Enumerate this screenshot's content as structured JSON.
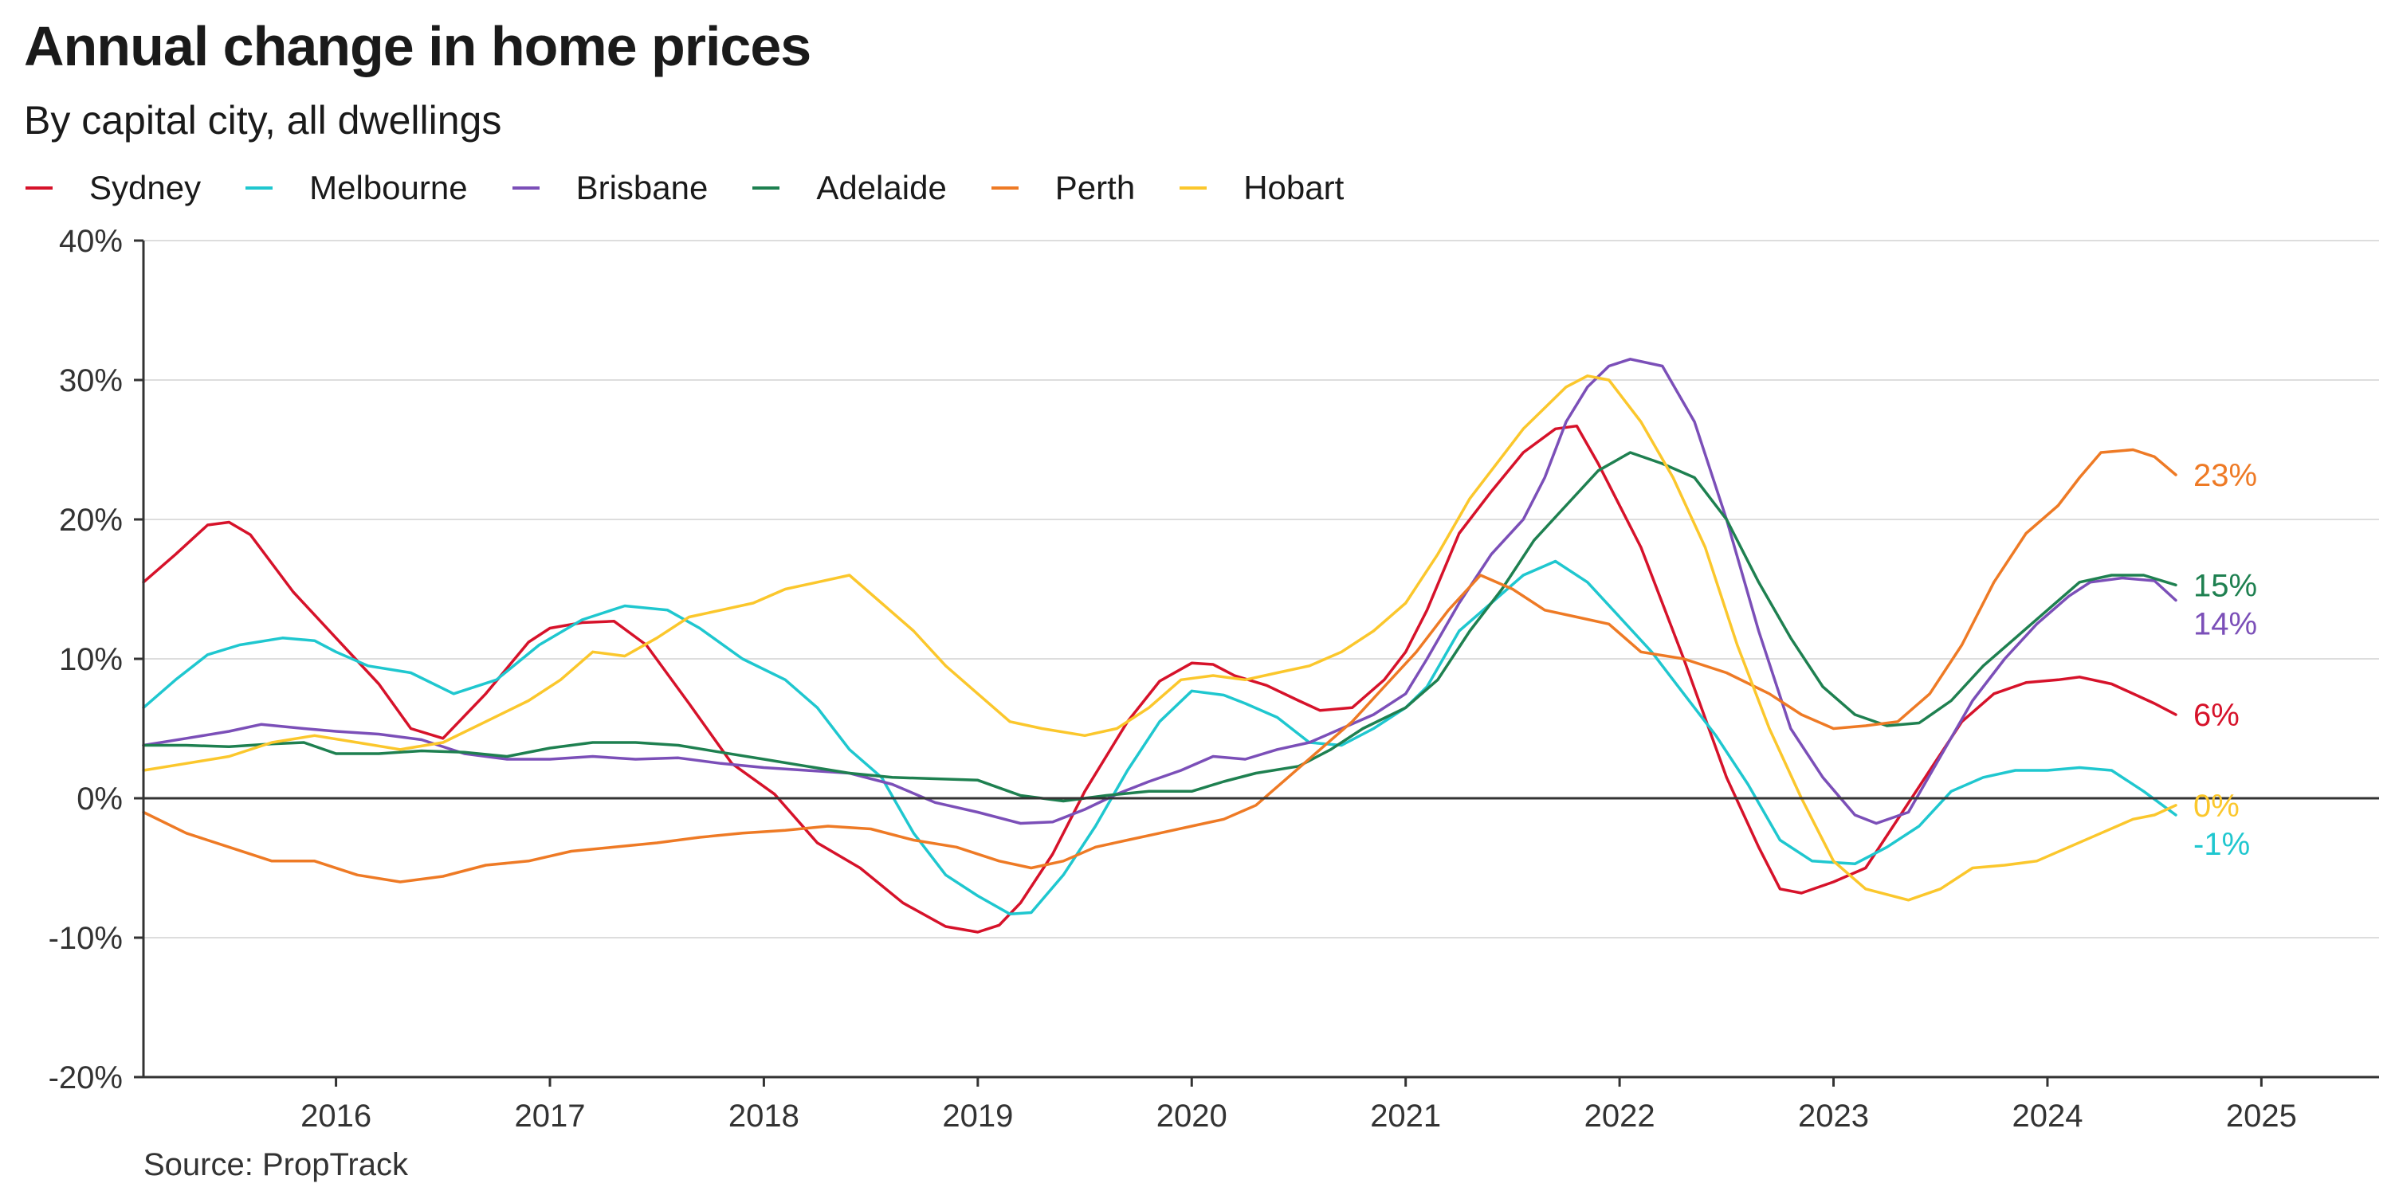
{
  "header": {
    "title": "Annual change in home prices",
    "subtitle": "By capital city, all dwellings"
  },
  "footer": {
    "source": "Source: PropTrack"
  },
  "chart_data": {
    "type": "line",
    "title": "Annual change in home prices",
    "subtitle": "By capital city, all dwellings",
    "xlabel": "",
    "ylabel": "",
    "xlim": [
      2015.1,
      2025.55
    ],
    "ylim": [
      -20,
      40
    ],
    "x_ticks": [
      2016,
      2017,
      2018,
      2019,
      2020,
      2021,
      2022,
      2023,
      2024,
      2025
    ],
    "y_ticks": [
      -20,
      -10,
      0,
      10,
      20,
      30,
      40
    ],
    "y_tick_labels": [
      "-20%",
      "-10%",
      "0%",
      "10%",
      "20%",
      "30%",
      "40%"
    ],
    "grid": true,
    "legend": "top-left",
    "series": [
      {
        "name": "Sydney",
        "color": "#d6122a",
        "end_label": "6%",
        "x": [
          2015.1,
          2015.25,
          2015.4,
          2015.5,
          2015.6,
          2015.8,
          2016.0,
          2016.2,
          2016.35,
          2016.5,
          2016.7,
          2016.9,
          2017.0,
          2017.15,
          2017.3,
          2017.45,
          2017.65,
          2017.85,
          2018.05,
          2018.25,
          2018.45,
          2018.65,
          2018.85,
          2019.0,
          2019.1,
          2019.2,
          2019.35,
          2019.5,
          2019.7,
          2019.85,
          2020.0,
          2020.1,
          2020.2,
          2020.35,
          2020.5,
          2020.6,
          2020.75,
          2020.9,
          2021.0,
          2021.1,
          2021.25,
          2021.4,
          2021.55,
          2021.7,
          2021.8,
          2021.9,
          2022.1,
          2022.3,
          2022.5,
          2022.65,
          2022.75,
          2022.85,
          2023.0,
          2023.15,
          2023.3,
          2023.45,
          2023.6,
          2023.75,
          2023.9,
          2024.05,
          2024.15,
          2024.3,
          2024.5,
          2024.6
        ],
        "values": [
          15.5,
          17.5,
          19.6,
          19.8,
          18.9,
          14.8,
          11.5,
          8.2,
          5.0,
          4.3,
          7.5,
          11.2,
          12.2,
          12.6,
          12.7,
          11.0,
          6.8,
          2.5,
          0.3,
          -3.2,
          -5.0,
          -7.5,
          -9.2,
          -9.6,
          -9.1,
          -7.5,
          -4.0,
          0.5,
          5.5,
          8.4,
          9.7,
          9.6,
          8.8,
          8.1,
          7.0,
          6.3,
          6.5,
          8.5,
          10.5,
          13.5,
          19.0,
          22.0,
          24.8,
          26.5,
          26.7,
          24.0,
          18.0,
          10.0,
          1.5,
          -3.5,
          -6.5,
          -6.8,
          -6.0,
          -5.0,
          -1.5,
          2.0,
          5.5,
          7.5,
          8.3,
          8.5,
          8.7,
          8.2,
          6.8,
          6.0
        ]
      },
      {
        "name": "Melbourne",
        "color": "#1fc7cf",
        "end_label": "-1%",
        "x": [
          2015.1,
          2015.25,
          2015.4,
          2015.55,
          2015.75,
          2015.9,
          2016.0,
          2016.15,
          2016.35,
          2016.55,
          2016.75,
          2016.95,
          2017.15,
          2017.35,
          2017.55,
          2017.7,
          2017.9,
          2018.1,
          2018.25,
          2018.4,
          2018.55,
          2018.7,
          2018.85,
          2019.0,
          2019.15,
          2019.25,
          2019.4,
          2019.55,
          2019.7,
          2019.85,
          2020.0,
          2020.15,
          2020.25,
          2020.4,
          2020.55,
          2020.7,
          2020.85,
          2021.0,
          2021.1,
          2021.25,
          2021.4,
          2021.55,
          2021.7,
          2021.85,
          2022.0,
          2022.15,
          2022.3,
          2022.45,
          2022.6,
          2022.75,
          2022.9,
          2023.1,
          2023.25,
          2023.4,
          2023.55,
          2023.7,
          2023.85,
          2024.0,
          2024.15,
          2024.3,
          2024.45,
          2024.6
        ],
        "values": [
          6.5,
          8.5,
          10.3,
          11.0,
          11.5,
          11.3,
          10.5,
          9.5,
          9.0,
          7.5,
          8.5,
          11.0,
          12.8,
          13.8,
          13.5,
          12.2,
          10.0,
          8.5,
          6.5,
          3.5,
          1.5,
          -2.5,
          -5.5,
          -7.0,
          -8.3,
          -8.2,
          -5.5,
          -2.0,
          2.0,
          5.5,
          7.7,
          7.4,
          6.8,
          5.8,
          4.0,
          3.8,
          5.0,
          6.5,
          8.0,
          12.0,
          14.0,
          16.0,
          17.0,
          15.5,
          13.0,
          10.5,
          7.5,
          4.5,
          1.0,
          -3.0,
          -4.5,
          -4.7,
          -3.5,
          -2.0,
          0.5,
          1.5,
          2.0,
          2.0,
          2.2,
          2.0,
          0.5,
          -1.2
        ]
      },
      {
        "name": "Brisbane",
        "color": "#7b4fb8",
        "end_label": "14%",
        "x": [
          2015.1,
          2015.3,
          2015.5,
          2015.65,
          2015.85,
          2016.0,
          2016.2,
          2016.4,
          2016.6,
          2016.8,
          2017.0,
          2017.2,
          2017.4,
          2017.6,
          2017.8,
          2018.0,
          2018.2,
          2018.4,
          2018.6,
          2018.8,
          2019.0,
          2019.2,
          2019.35,
          2019.5,
          2019.65,
          2019.8,
          2019.95,
          2020.1,
          2020.25,
          2020.4,
          2020.55,
          2020.7,
          2020.85,
          2021.0,
          2021.1,
          2021.25,
          2021.4,
          2021.55,
          2021.65,
          2021.75,
          2021.85,
          2021.95,
          2022.05,
          2022.2,
          2022.35,
          2022.5,
          2022.65,
          2022.8,
          2022.95,
          2023.1,
          2023.2,
          2023.35,
          2023.5,
          2023.65,
          2023.8,
          2023.95,
          2024.1,
          2024.2,
          2024.35,
          2024.5,
          2024.6
        ],
        "values": [
          3.8,
          4.3,
          4.8,
          5.3,
          5.0,
          4.8,
          4.6,
          4.2,
          3.2,
          2.8,
          2.8,
          3.0,
          2.8,
          2.9,
          2.5,
          2.2,
          2.0,
          1.8,
          1.0,
          -0.3,
          -1.0,
          -1.8,
          -1.7,
          -0.8,
          0.3,
          1.2,
          2.0,
          3.0,
          2.8,
          3.5,
          4.0,
          5.0,
          6.0,
          7.5,
          10.0,
          14.0,
          17.5,
          20.0,
          23.0,
          27.0,
          29.5,
          31.0,
          31.5,
          31.0,
          27.0,
          20.0,
          12.0,
          5.0,
          1.5,
          -1.2,
          -1.8,
          -1.0,
          3.0,
          7.0,
          10.0,
          12.5,
          14.5,
          15.5,
          15.8,
          15.6,
          14.2
        ]
      },
      {
        "name": "Adelaide",
        "color": "#1e8050",
        "end_label": "15%",
        "x": [
          2015.1,
          2015.3,
          2015.5,
          2015.7,
          2015.85,
          2016.0,
          2016.2,
          2016.4,
          2016.6,
          2016.8,
          2017.0,
          2017.2,
          2017.4,
          2017.6,
          2017.8,
          2018.0,
          2018.2,
          2018.4,
          2018.6,
          2018.8,
          2019.0,
          2019.2,
          2019.4,
          2019.6,
          2019.8,
          2020.0,
          2020.15,
          2020.3,
          2020.5,
          2020.65,
          2020.8,
          2021.0,
          2021.15,
          2021.3,
          2021.45,
          2021.6,
          2021.75,
          2021.9,
          2022.05,
          2022.2,
          2022.35,
          2022.5,
          2022.65,
          2022.8,
          2022.95,
          2023.1,
          2023.25,
          2023.4,
          2023.55,
          2023.7,
          2023.85,
          2024.0,
          2024.15,
          2024.3,
          2024.45,
          2024.6
        ],
        "values": [
          3.8,
          3.8,
          3.7,
          3.9,
          4.0,
          3.2,
          3.2,
          3.4,
          3.3,
          3.0,
          3.6,
          4.0,
          4.0,
          3.8,
          3.3,
          2.8,
          2.3,
          1.8,
          1.5,
          1.4,
          1.3,
          0.2,
          -0.2,
          0.2,
          0.5,
          0.5,
          1.2,
          1.8,
          2.3,
          3.5,
          5.0,
          6.5,
          8.5,
          12.0,
          15.0,
          18.5,
          21.0,
          23.5,
          24.8,
          24.0,
          23.0,
          20.0,
          15.5,
          11.5,
          8.0,
          6.0,
          5.2,
          5.4,
          7.0,
          9.5,
          11.5,
          13.5,
          15.5,
          16.0,
          16.0,
          15.3
        ]
      },
      {
        "name": "Perth",
        "color": "#ee7a25",
        "end_label": "23%",
        "x": [
          2015.1,
          2015.3,
          2015.5,
          2015.7,
          2015.9,
          2016.1,
          2016.3,
          2016.5,
          2016.7,
          2016.9,
          2017.1,
          2017.3,
          2017.5,
          2017.7,
          2017.9,
          2018.1,
          2018.3,
          2018.5,
          2018.7,
          2018.9,
          2019.1,
          2019.25,
          2019.4,
          2019.55,
          2019.7,
          2019.85,
          2020.0,
          2020.15,
          2020.3,
          2020.45,
          2020.6,
          2020.75,
          2020.9,
          2021.05,
          2021.2,
          2021.35,
          2021.5,
          2021.65,
          2021.8,
          2021.95,
          2022.1,
          2022.3,
          2022.5,
          2022.7,
          2022.85,
          2023.0,
          2023.15,
          2023.3,
          2023.45,
          2023.6,
          2023.75,
          2023.9,
          2024.05,
          2024.15,
          2024.25,
          2024.4,
          2024.5,
          2024.6
        ],
        "values": [
          -1.0,
          -2.5,
          -3.5,
          -4.5,
          -4.5,
          -5.5,
          -6.0,
          -5.6,
          -4.8,
          -4.5,
          -3.8,
          -3.5,
          -3.2,
          -2.8,
          -2.5,
          -2.3,
          -2.0,
          -2.2,
          -3.0,
          -3.5,
          -4.5,
          -5.0,
          -4.5,
          -3.5,
          -3.0,
          -2.5,
          -2.0,
          -1.5,
          -0.5,
          1.5,
          3.5,
          5.5,
          8.0,
          10.5,
          13.5,
          16.0,
          15.0,
          13.5,
          13.0,
          12.5,
          10.5,
          10.0,
          9.0,
          7.5,
          6.0,
          5.0,
          5.2,
          5.5,
          7.5,
          11.0,
          15.5,
          19.0,
          21.0,
          23.0,
          24.8,
          25.0,
          24.5,
          23.2
        ]
      },
      {
        "name": "Hobart",
        "color": "#fbc72c",
        "end_label": "0%",
        "x": [
          2015.1,
          2015.3,
          2015.5,
          2015.7,
          2015.9,
          2016.1,
          2016.3,
          2016.5,
          2016.7,
          2016.9,
          2017.05,
          2017.2,
          2017.35,
          2017.5,
          2017.65,
          2017.8,
          2017.95,
          2018.1,
          2018.25,
          2018.4,
          2018.55,
          2018.7,
          2018.85,
          2019.0,
          2019.15,
          2019.3,
          2019.5,
          2019.65,
          2019.8,
          2019.95,
          2020.1,
          2020.25,
          2020.4,
          2020.55,
          2020.7,
          2020.85,
          2021.0,
          2021.15,
          2021.3,
          2021.45,
          2021.55,
          2021.65,
          2021.75,
          2021.85,
          2021.95,
          2022.1,
          2022.25,
          2022.4,
          2022.55,
          2022.7,
          2022.85,
          2023.0,
          2023.15,
          2023.35,
          2023.5,
          2023.65,
          2023.8,
          2023.95,
          2024.1,
          2024.25,
          2024.4,
          2024.5,
          2024.6
        ],
        "values": [
          2.0,
          2.5,
          3.0,
          4.0,
          4.5,
          4.0,
          3.5,
          4.0,
          5.5,
          7.0,
          8.5,
          10.5,
          10.2,
          11.5,
          13.0,
          13.5,
          14.0,
          15.0,
          15.5,
          16.0,
          14.0,
          12.0,
          9.5,
          7.5,
          5.5,
          5.0,
          4.5,
          5.0,
          6.5,
          8.5,
          8.8,
          8.5,
          9.0,
          9.5,
          10.5,
          12.0,
          14.0,
          17.5,
          21.5,
          24.5,
          26.5,
          28.0,
          29.5,
          30.3,
          30.0,
          27.0,
          23.0,
          18.0,
          11.0,
          5.0,
          0.0,
          -4.5,
          -6.5,
          -7.3,
          -6.5,
          -5.0,
          -4.8,
          -4.5,
          -3.5,
          -2.5,
          -1.5,
          -1.2,
          -0.5
        ]
      }
    ]
  }
}
